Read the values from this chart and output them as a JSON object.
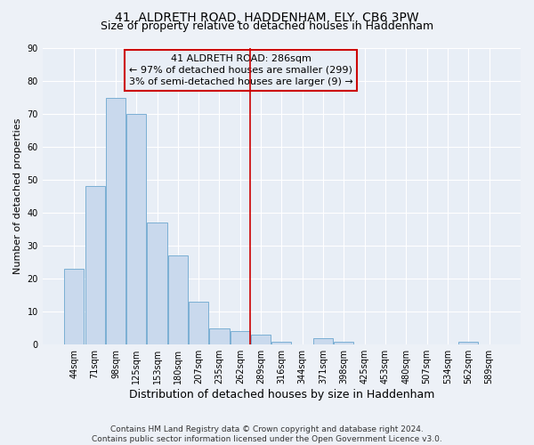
{
  "title": "41, ALDRETH ROAD, HADDENHAM, ELY, CB6 3PW",
  "subtitle": "Size of property relative to detached houses in Haddenham",
  "xlabel": "Distribution of detached houses by size in Haddenham",
  "ylabel": "Number of detached properties",
  "bar_labels": [
    "44sqm",
    "71sqm",
    "98sqm",
    "125sqm",
    "153sqm",
    "180sqm",
    "207sqm",
    "235sqm",
    "262sqm",
    "289sqm",
    "316sqm",
    "344sqm",
    "371sqm",
    "398sqm",
    "425sqm",
    "453sqm",
    "480sqm",
    "507sqm",
    "534sqm",
    "562sqm",
    "589sqm"
  ],
  "bar_values": [
    23,
    48,
    75,
    70,
    37,
    27,
    13,
    5,
    4,
    3,
    1,
    0,
    2,
    1,
    0,
    0,
    0,
    0,
    0,
    1,
    0
  ],
  "bar_color": "#c9d9ed",
  "bar_edge_color": "#7bafd4",
  "highlight_line_color": "#cc0000",
  "annotation_line1": "41 ALDRETH ROAD: 286sqm",
  "annotation_line2": "← 97% of detached houses are smaller (299)",
  "annotation_line3": "3% of semi-detached houses are larger (9) →",
  "ylim": [
    0,
    90
  ],
  "yticks": [
    0,
    10,
    20,
    30,
    40,
    50,
    60,
    70,
    80,
    90
  ],
  "footnote": "Contains HM Land Registry data © Crown copyright and database right 2024.\nContains public sector information licensed under the Open Government Licence v3.0.",
  "bg_color": "#edf1f7",
  "plot_bg_color": "#e8eef6",
  "grid_color": "#ffffff",
  "title_fontsize": 10,
  "subtitle_fontsize": 9,
  "xlabel_fontsize": 9,
  "ylabel_fontsize": 8,
  "tick_fontsize": 7,
  "annot_fontsize": 8,
  "footnote_fontsize": 6.5
}
